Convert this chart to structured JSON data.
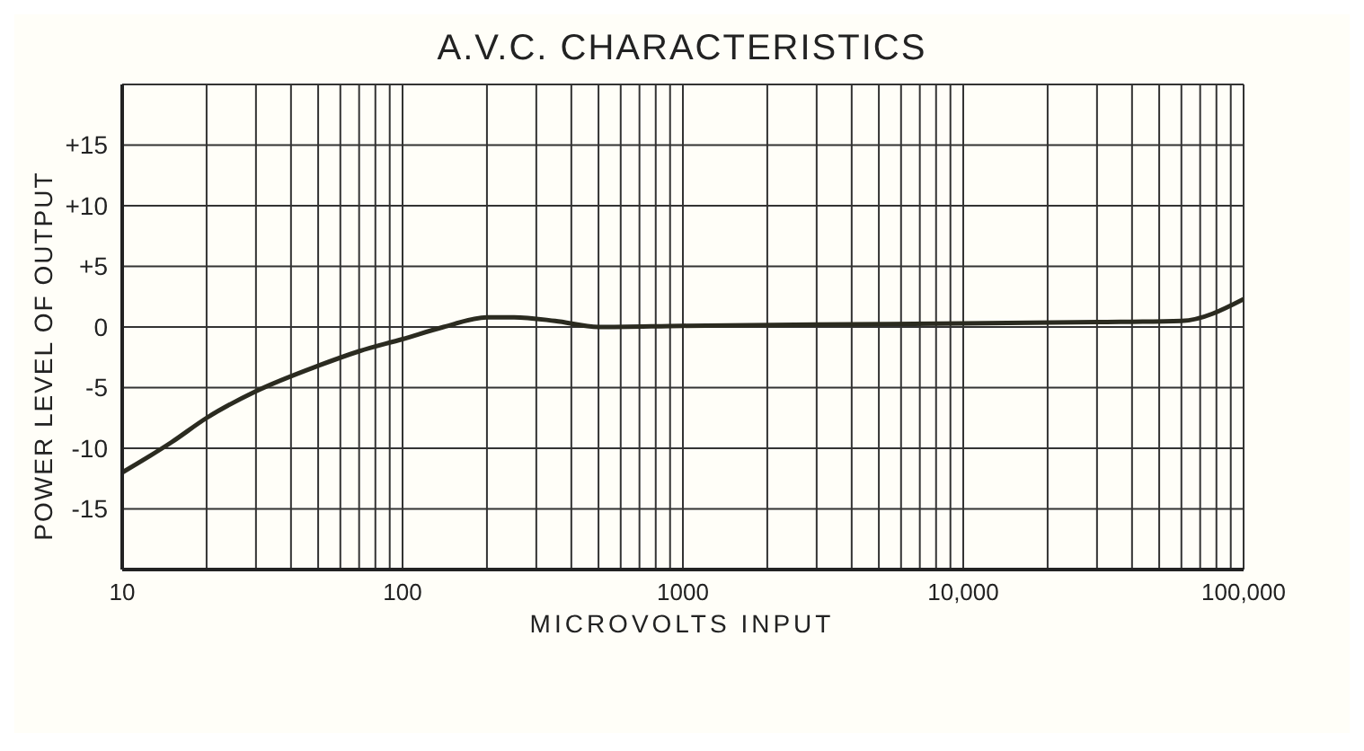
{
  "chart_data": {
    "type": "line",
    "title": "A.V.C. CHARACTERISTICS",
    "xlabel": "MICROVOLTS INPUT",
    "ylabel": "POWER LEVEL OF OUTPUT",
    "x": [
      10,
      15,
      20,
      30,
      50,
      70,
      100,
      140,
      200,
      250,
      350,
      500,
      1000,
      3000,
      10000,
      30000,
      60000,
      100000
    ],
    "series": [
      {
        "color": "#2b2b20",
        "values": [
          -12,
          -9.5,
          -7.5,
          -5.3,
          -3.2,
          -2,
          -1,
          0,
          0.8,
          0.8,
          0.5,
          0,
          0.1,
          0.2,
          0.3,
          0.4,
          0.5,
          2.3
        ]
      }
    ],
    "log": "x",
    "xlim": [
      10,
      100000
    ],
    "xticks": [
      10,
      {
        "value": 20,
        "label": null
      },
      {
        "value": 30,
        "label": null
      },
      {
        "value": 40,
        "label": null
      },
      {
        "value": 50,
        "label": null
      },
      {
        "value": 60,
        "label": null
      },
      {
        "value": 70,
        "label": null
      },
      {
        "value": 80,
        "label": null
      },
      {
        "value": 90,
        "label": null
      },
      100,
      {
        "value": 200,
        "label": null
      },
      {
        "value": 300,
        "label": null
      },
      {
        "value": 400,
        "label": null
      },
      {
        "value": 500,
        "label": null
      },
      {
        "value": 600,
        "label": null
      },
      {
        "value": 700,
        "label": null
      },
      {
        "value": 800,
        "label": null
      },
      {
        "value": 900,
        "label": null
      },
      1000,
      {
        "value": 2000,
        "label": null
      },
      {
        "value": 3000,
        "label": null
      },
      {
        "value": 4000,
        "label": null
      },
      {
        "value": 5000,
        "label": null
      },
      {
        "value": 6000,
        "label": null
      },
      {
        "value": 7000,
        "label": null
      },
      {
        "value": 8000,
        "label": null
      },
      {
        "value": 9000,
        "label": null
      },
      {
        "value": 10000,
        "label": "10,000"
      },
      {
        "value": 20000,
        "label": null
      },
      {
        "value": 30000,
        "label": null
      },
      {
        "value": 40000,
        "label": null
      },
      {
        "value": 50000,
        "label": null
      },
      {
        "value": 60000,
        "label": null
      },
      {
        "value": 70000,
        "label": null
      },
      {
        "value": 80000,
        "label": null
      },
      {
        "value": 90000,
        "label": null
      },
      {
        "value": 100000,
        "label": "100,000"
      }
    ],
    "ylim": [
      -20,
      20
    ],
    "yticks": [
      {
        "value": -20,
        "label": null
      },
      -15,
      -10,
      -5,
      0,
      {
        "value": 5,
        "label": "+5"
      },
      {
        "value": 10,
        "label": "+10"
      },
      {
        "value": 15,
        "label": "+15"
      },
      {
        "value": 20,
        "label": null
      }
    ],
    "grid": true,
    "legend": false,
    "marker": "none",
    "line_style": "solid"
  }
}
